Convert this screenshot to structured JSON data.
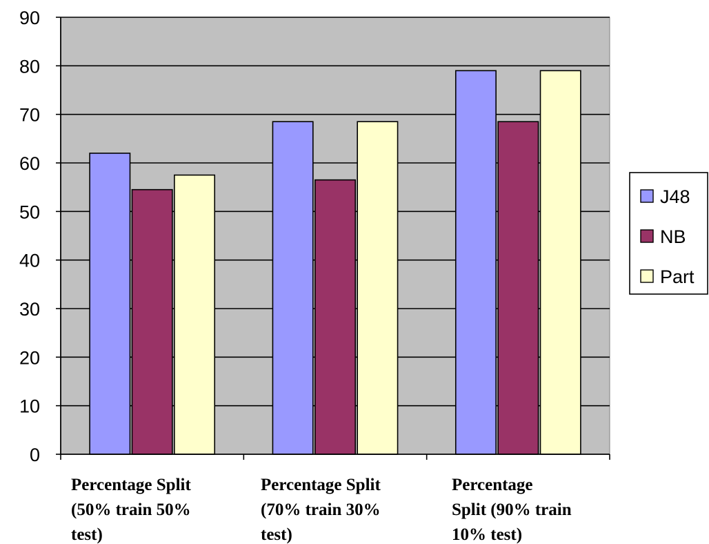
{
  "chart_data": {
    "type": "bar",
    "title": "",
    "xlabel": "",
    "ylabel": "",
    "ylim": [
      0,
      90
    ],
    "yticks": [
      0,
      10,
      20,
      30,
      40,
      50,
      60,
      70,
      80,
      90
    ],
    "grid": true,
    "legend_position": "right",
    "categories": [
      [
        "Percentage Split",
        "(50% train 50%",
        "test)"
      ],
      [
        "Percentage Split",
        "(70% train 30%",
        "test)"
      ],
      [
        "Percentage",
        "Split (90% train",
        "10% test)"
      ]
    ],
    "series": [
      {
        "name": "J48",
        "color": "#9999ff",
        "values": [
          62,
          68.5,
          79
        ]
      },
      {
        "name": "NB",
        "color": "#993366",
        "values": [
          54.5,
          56.5,
          68.5
        ]
      },
      {
        "name": "Part",
        "color": "#ffffcc",
        "values": [
          57.5,
          68.5,
          79
        ]
      }
    ],
    "plot_background": "#c0c0c0"
  }
}
